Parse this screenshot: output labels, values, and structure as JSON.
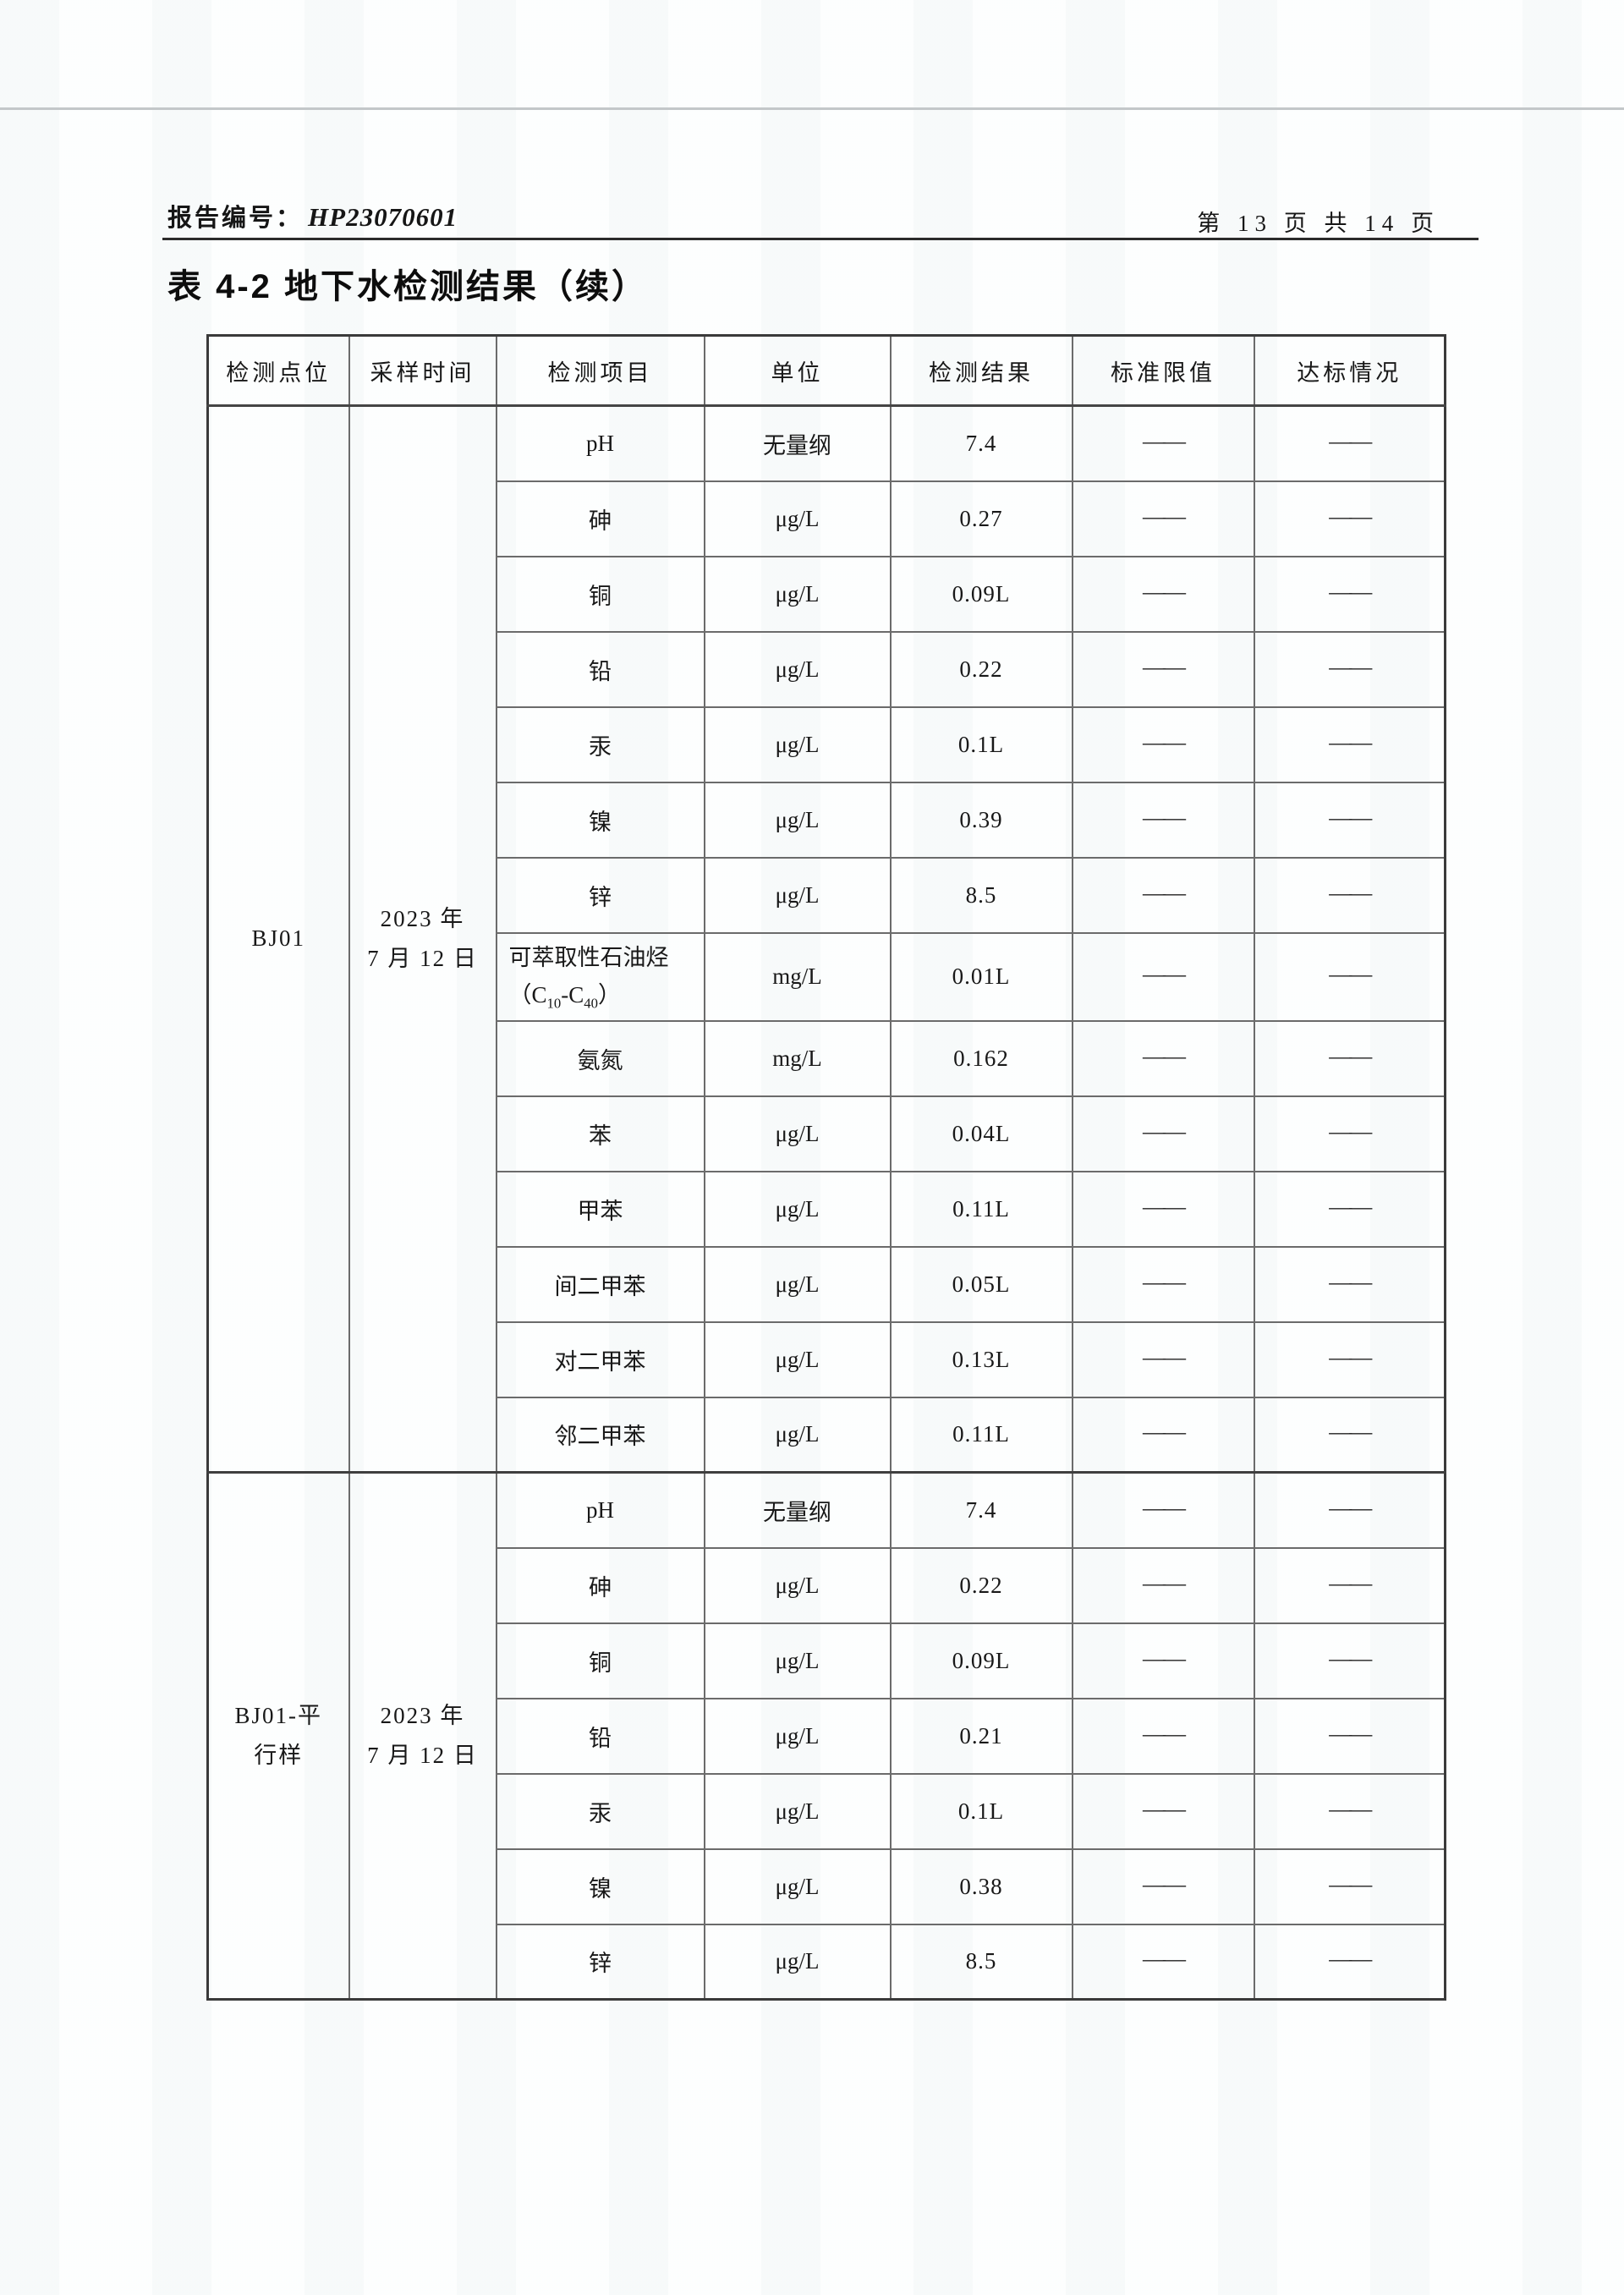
{
  "header": {
    "report_label": "报告编号：",
    "report_no": "HP23070601",
    "page_info": "第 13 页 共 14 页",
    "title": "表 4-2 地下水检测结果（续）"
  },
  "table": {
    "headers": [
      "检测点位",
      "采样时间",
      "检测项目",
      "单位",
      "检测结果",
      "标准限值",
      "达标情况"
    ],
    "dash": "——",
    "groups": [
      {
        "point": "BJ01",
        "point_lines": [
          "BJ01"
        ],
        "time": "2023 年 7 月 12 日",
        "time_lines": [
          "2023 年",
          "7 月 12 日"
        ],
        "rows": [
          {
            "item": "pH",
            "unit": "无量纲",
            "result": "7.4"
          },
          {
            "item": "砷",
            "unit": "μg/L",
            "result": "0.27"
          },
          {
            "item": "铜",
            "unit": "μg/L",
            "result": "0.09L"
          },
          {
            "item": "铅",
            "unit": "μg/L",
            "result": "0.22"
          },
          {
            "item": "汞",
            "unit": "μg/L",
            "result": "0.1L"
          },
          {
            "item": "镍",
            "unit": "μg/L",
            "result": "0.39"
          },
          {
            "item": "锌",
            "unit": "μg/L",
            "result": "8.5"
          },
          {
            "item": "可萃取性石油烃（C10-C40）",
            "unit": "mg/L",
            "result": "0.01L"
          },
          {
            "item": "氨氮",
            "unit": "mg/L",
            "result": "0.162"
          },
          {
            "item": "苯",
            "unit": "μg/L",
            "result": "0.04L"
          },
          {
            "item": "甲苯",
            "unit": "μg/L",
            "result": "0.11L"
          },
          {
            "item": "间二甲苯",
            "unit": "μg/L",
            "result": "0.05L"
          },
          {
            "item": "对二甲苯",
            "unit": "μg/L",
            "result": "0.13L"
          },
          {
            "item": "邻二甲苯",
            "unit": "μg/L",
            "result": "0.11L"
          }
        ]
      },
      {
        "point": "BJ01-平行样",
        "point_lines": [
          "BJ01-平",
          "行样"
        ],
        "time": "2023 年 7 月 12 日",
        "time_lines": [
          "2023 年",
          "7 月 12 日"
        ],
        "rows": [
          {
            "item": "pH",
            "unit": "无量纲",
            "result": "7.4"
          },
          {
            "item": "砷",
            "unit": "μg/L",
            "result": "0.22"
          },
          {
            "item": "铜",
            "unit": "μg/L",
            "result": "0.09L"
          },
          {
            "item": "铅",
            "unit": "μg/L",
            "result": "0.21"
          },
          {
            "item": "汞",
            "unit": "μg/L",
            "result": "0.1L"
          },
          {
            "item": "镍",
            "unit": "μg/L",
            "result": "0.38"
          },
          {
            "item": "锌",
            "unit": "μg/L",
            "result": "8.5"
          }
        ]
      }
    ]
  }
}
